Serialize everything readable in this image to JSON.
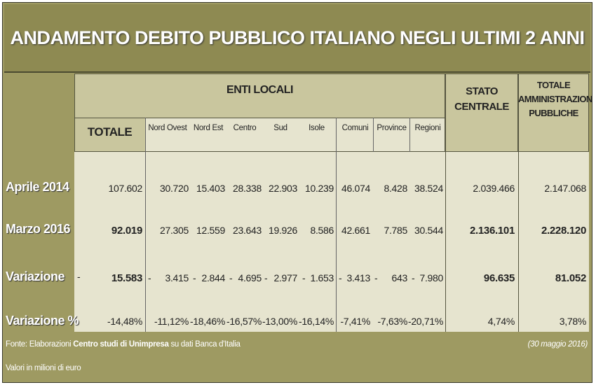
{
  "title": "ANDAMENTO DEBITO PUBBLICO ITALIANO NEGLI ULTIMI 2 ANNI",
  "headers": {
    "enti_locali": "ENTI LOCALI",
    "totale": "TOTALE",
    "stato_centrale_1": "STATO",
    "stato_centrale_2": "CENTRALE",
    "tot_amm_1": "TOTALE",
    "tot_amm_2": "AMMINISTRAZIONI",
    "tot_amm_3": "PUBBLICHE",
    "sub": [
      "Nord Ovest",
      "Nord Est",
      "Centro",
      "Sud",
      "Isole",
      "Comuni",
      "Province",
      "Regioni"
    ]
  },
  "rows": [
    {
      "label": "Aprile 2014",
      "totale": "107.602",
      "vals": [
        "30.720",
        "15.403",
        "28.338",
        "22.903",
        "10.239",
        "46.074",
        "8.428",
        "38.524"
      ],
      "stato": "2.039.466",
      "tot_amm": "2.147.068"
    },
    {
      "label": "Marzo 2016",
      "totale": "92.019",
      "vals": [
        "27.305",
        "12.559",
        "23.643",
        "19.926",
        "8.586",
        "42.661",
        "7.785",
        "30.544"
      ],
      "stato": "2.136.101",
      "tot_amm": "2.228.120"
    },
    {
      "label": "Variazione",
      "totale": "15.583",
      "vals": [
        "3.415",
        "2.844",
        "4.695",
        "2.977",
        "1.653",
        "3.413",
        "643",
        "7.980"
      ],
      "stato": "96.635",
      "tot_amm": "81.052"
    },
    {
      "label": "Variazione %",
      "totale": "-14,48%",
      "vals": [
        "-11,12%",
        "-18,46%",
        "-16,57%",
        "-13,00%",
        "-16,14%",
        "-7,41%",
        "-7,63%",
        "-20,71%"
      ],
      "stato": "4,74%",
      "tot_amm": "3,78%"
    }
  ],
  "footer": {
    "source_pre": "Fonte: Elaborazioni",
    "source_bold": "Centro studi di Unimpresa",
    "source_post": "su dati Banca d'Italia",
    "date": "(30 maggio 2016)",
    "units": "Valori in milioni di euro"
  }
}
